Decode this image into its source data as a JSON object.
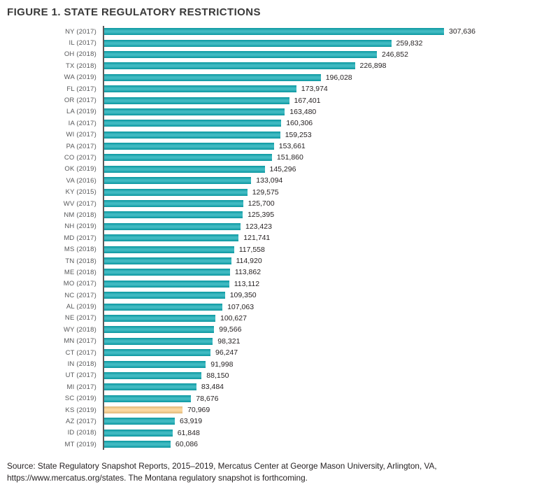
{
  "title": "FIGURE 1. STATE REGULATORY RESTRICTIONS",
  "source_note": "Source: State Regulatory Snapshot Reports, 2015–2019, Mercatus Center at George Mason University, Arlington, VA, https://www.mercatus.org/states. The Montana regulatory snapshot is forthcoming.",
  "colors": {
    "bar": "#0ba7b1",
    "highlight": "#facd86",
    "axis": "#5a5a5a",
    "category_label": "#58595b",
    "value_label": "#231f20",
    "title": "#3a3a3a"
  },
  "chart_data": {
    "type": "bar",
    "orientation": "horizontal",
    "title": "FIGURE 1. STATE REGULATORY RESTRICTIONS",
    "xlabel": "",
    "ylabel": "",
    "xlim": [
      0,
      320000
    ],
    "grid": false,
    "legend": false,
    "highlighted_category": "KS (2019)",
    "categories": [
      "NY (2017)",
      "IL (2017)",
      "OH (2018)",
      "TX (2018)",
      "WA (2019)",
      "FL (2017)",
      "OR (2017)",
      "LA (2019)",
      "IA (2017)",
      "WI (2017)",
      "PA (2017)",
      "CO (2017)",
      "OK (2019)",
      "VA (2016)",
      "KY (2015)",
      "WV (2017)",
      "NM (2018)",
      "NH (2019)",
      "MD (2017)",
      "MS (2018)",
      "TN (2018)",
      "ME (2018)",
      "MO (2017)",
      "NC (2017)",
      "AL (2019)",
      "NE (2017)",
      "WY (2018)",
      "MN (2017)",
      "CT (2017)",
      "IN (2018)",
      "UT (2017)",
      "MI (2017)",
      "SC (2019)",
      "KS (2019)",
      "AZ (2017)",
      "ID (2018)",
      "MT (2019)"
    ],
    "values": [
      307636,
      259832,
      246852,
      226898,
      196028,
      173974,
      167401,
      163480,
      160306,
      159253,
      153661,
      151860,
      145296,
      133094,
      129575,
      125700,
      125395,
      123423,
      121741,
      117558,
      114920,
      113862,
      113112,
      109350,
      107063,
      100627,
      99566,
      98321,
      96247,
      91998,
      88150,
      83484,
      78676,
      70969,
      63919,
      61848,
      60086
    ],
    "value_labels": [
      "307,636",
      "259,832",
      "246,852",
      "226,898",
      "196,028",
      "173,974",
      "167,401",
      "163,480",
      "160,306",
      "159,253",
      "153,661",
      "151,860",
      "145,296",
      "133,094",
      "129,575",
      "125,700",
      "125,395",
      "123,423",
      "121,741",
      "117,558",
      "114,920",
      "113,862",
      "113,112",
      "109,350",
      "107,063",
      "100,627",
      "99,566",
      "98,321",
      "96,247",
      "91,998",
      "88,150",
      "83,484",
      "78,676",
      "70,969",
      "63,919",
      "61,848",
      "60,086"
    ]
  }
}
